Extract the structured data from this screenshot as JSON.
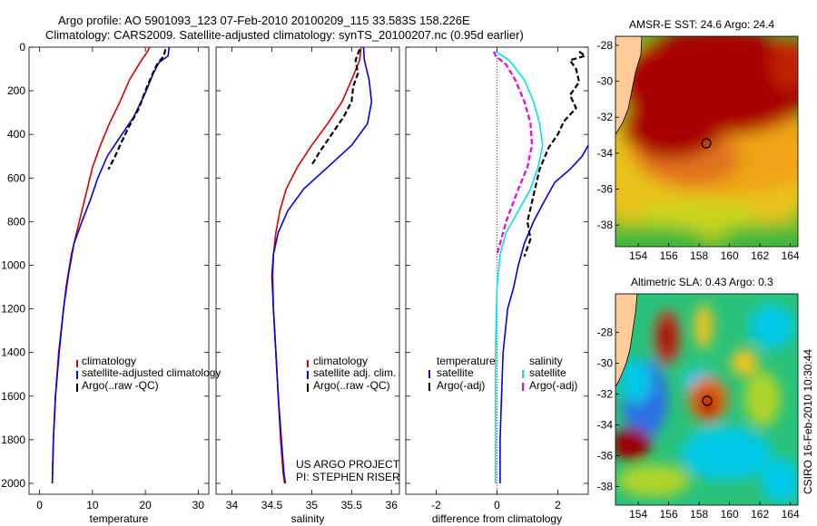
{
  "header": {
    "title_line1": "Argo profile: AO 5901093_123 07-Feb-2010 20100209_115 33.583S 158.226E",
    "title_line2": "Climatology: CARS2009. Satellite-adjusted climatology: synTS_20100207.nc (0.95d earlier)"
  },
  "side_text": "CSIRO 16-Feb-2010 10:30:44",
  "credit": {
    "line1": "US ARGO PROJECT",
    "line2": "PI: STEPHEN RISER"
  },
  "colors": {
    "climatology": "#dd0000",
    "satellite": "#0000ee",
    "argo": "#000000",
    "sat_sal_diff": "#00e5ee",
    "argo_sal_diff": "#ee00ee"
  },
  "chart_data": [
    {
      "type": "line",
      "panel": "temperature",
      "xlabel": "temperature",
      "ylabel": "",
      "xlim": [
        -2,
        32
      ],
      "ylim": [
        2050,
        0
      ],
      "xticks": [
        "0",
        "10",
        "20",
        "30"
      ],
      "yticks": [
        "0",
        "200",
        "400",
        "600",
        "800",
        "1000",
        "1200",
        "1400",
        "1600",
        "1800",
        "2000"
      ],
      "legend": {
        "placement": "lower-right",
        "entries": [
          "climatology",
          "satellite-adjusted climatology",
          "Argo(..raw -QC)"
        ]
      },
      "series": [
        {
          "name": "climatology",
          "style": "solid",
          "color": "#dd0000",
          "x": [
            20.8,
            20.4,
            19.0,
            17.0,
            15.2,
            13.2,
            11.5,
            10.0,
            9.0,
            8.0,
            7.0,
            6.0,
            5.0,
            4.3,
            3.6,
            3.0,
            2.6,
            2.4
          ],
          "y": [
            0,
            20,
            70,
            150,
            250,
            350,
            450,
            550,
            650,
            750,
            850,
            950,
            1100,
            1250,
            1400,
            1600,
            1800,
            2000
          ]
        },
        {
          "name": "satellite-adjusted climatology",
          "style": "solid",
          "color": "#0000ee",
          "x": [
            24.5,
            24.3,
            22.6,
            21.5,
            19.8,
            17.8,
            15.0,
            12.8,
            11.0,
            9.6,
            8.0,
            6.5,
            5.4,
            4.5,
            3.7,
            3.0,
            2.6,
            2.4
          ],
          "y": [
            0,
            40,
            70,
            120,
            220,
            320,
            420,
            500,
            600,
            700,
            800,
            900,
            1050,
            1200,
            1400,
            1600,
            1800,
            2000
          ]
        },
        {
          "name": "Argo(..raw -QC)",
          "style": "dashed",
          "color": "#000000",
          "x": [
            23.8,
            23.5,
            22.2,
            21.4,
            20.0,
            18.8,
            17.0,
            15.4,
            14.3,
            13.0
          ],
          "y": [
            10,
            40,
            80,
            120,
            200,
            280,
            360,
            440,
            500,
            560
          ]
        }
      ]
    },
    {
      "type": "line",
      "panel": "salinity",
      "xlabel": "salinity",
      "ylabel": "",
      "xlim": [
        33.8,
        36.1
      ],
      "ylim": [
        2050,
        0
      ],
      "xticks": [
        "34",
        "34.5",
        "35",
        "35.5",
        "36"
      ],
      "legend": {
        "placement": "lower-right",
        "entries": [
          "climatology",
          "satellite adj. clim.",
          "Argo(..raw -QC)"
        ]
      },
      "series": [
        {
          "name": "climatology",
          "style": "solid",
          "color": "#dd0000",
          "x": [
            35.62,
            35.6,
            35.5,
            35.38,
            35.2,
            35.0,
            34.82,
            34.68,
            34.6,
            34.55,
            34.52,
            34.51,
            34.52,
            34.55,
            34.58,
            34.61,
            34.64,
            34.66
          ],
          "y": [
            0,
            60,
            150,
            250,
            350,
            450,
            550,
            650,
            750,
            850,
            950,
            1050,
            1200,
            1400,
            1600,
            1800,
            1950,
            2000
          ]
        },
        {
          "name": "satellite adj. clim.",
          "style": "solid",
          "color": "#0000ee",
          "x": [
            35.65,
            35.66,
            35.72,
            35.75,
            35.7,
            35.5,
            35.2,
            34.9,
            34.7,
            34.58,
            34.52,
            34.5,
            34.52,
            34.55,
            34.58,
            34.62,
            34.65,
            34.67
          ],
          "y": [
            0,
            60,
            150,
            250,
            350,
            450,
            550,
            650,
            750,
            850,
            950,
            1050,
            1200,
            1400,
            1600,
            1800,
            1950,
            2000
          ]
        },
        {
          "name": "Argo(..raw -QC)",
          "style": "dashed",
          "color": "#000000",
          "x": [
            35.6,
            35.55,
            35.58,
            35.52,
            35.5,
            35.4,
            35.25,
            35.1,
            35.0
          ],
          "y": [
            10,
            60,
            120,
            180,
            250,
            320,
            400,
            480,
            540
          ]
        }
      ]
    },
    {
      "type": "line",
      "panel": "difference",
      "xlabel": "difference from climatology",
      "ylabel": "",
      "xlim": [
        -3.0,
        3.0
      ],
      "ylim": [
        2050,
        0
      ],
      "xticks": [
        "-2",
        "0",
        "2"
      ],
      "legend": {
        "placement": "lower-center",
        "entries": [
          "temperature",
          "satellite",
          "Argo(-adj)",
          "salinity",
          "satellite",
          "Argo(-adj)"
        ]
      },
      "series": [
        {
          "name": "temperature satellite",
          "style": "solid",
          "color": "#0000ee",
          "x": [
            3.0,
            2.8,
            2.4,
            1.9,
            1.5,
            1.2,
            0.9,
            0.7,
            0.55,
            0.35,
            0.2,
            0.15,
            0.1,
            0.1
          ],
          "y": [
            450,
            500,
            560,
            620,
            720,
            800,
            900,
            1000,
            1100,
            1200,
            1400,
            1600,
            1800,
            2000
          ]
        },
        {
          "name": "temperature Argo(-adj)",
          "style": "dashed",
          "color": "#000000",
          "x": [
            2.7,
            2.9,
            2.4,
            2.6,
            2.7,
            2.4,
            2.6,
            2.2,
            2.0,
            1.7,
            1.4,
            1.2,
            1.0,
            1.1,
            0.9
          ],
          "y": [
            20,
            40,
            60,
            100,
            160,
            220,
            280,
            340,
            400,
            460,
            560,
            680,
            800,
            880,
            960
          ]
        },
        {
          "name": "salinity satellite",
          "style": "solid",
          "color": "#00e5ee",
          "x": [
            -0.05,
            0.4,
            0.9,
            1.2,
            1.4,
            1.5,
            1.35,
            1.1,
            0.7,
            0.3,
            0.1,
            0.0,
            -0.05,
            -0.05
          ],
          "y": [
            20,
            60,
            150,
            250,
            350,
            450,
            550,
            650,
            750,
            850,
            950,
            1100,
            1400,
            2000
          ]
        },
        {
          "name": "salinity Argo(-adj)",
          "style": "dashed",
          "color": "#ee00ee",
          "x": [
            -0.1,
            -0.05,
            0.3,
            0.6,
            0.9,
            1.1,
            1.15,
            1.0,
            0.7,
            0.3,
            0.1,
            0.0
          ],
          "y": [
            20,
            40,
            80,
            150,
            250,
            350,
            450,
            550,
            650,
            800,
            900,
            950
          ]
        }
      ]
    },
    {
      "type": "heatmap",
      "panel": "sst_map",
      "title": "AMSR-E SST: 24.6  Argo: 24.4",
      "xlim": [
        152.5,
        164.5
      ],
      "ylim": [
        -39.2,
        -27.5
      ],
      "xticks": [
        "154",
        "156",
        "158",
        "160",
        "162",
        "164"
      ],
      "yticks": [
        "-28",
        "-30",
        "-32",
        "-34",
        "-36",
        "-38"
      ],
      "marker": {
        "lon": 158.226,
        "lat": -33.583
      }
    },
    {
      "type": "heatmap",
      "panel": "sla_map",
      "title": "Altimetric SLA: 0.43  Argo: 0.3",
      "xlim": [
        152.5,
        164.5
      ],
      "ylim": [
        -39.2,
        -25.5
      ],
      "xticks": [
        "154",
        "156",
        "158",
        "160",
        "162",
        "164"
      ],
      "yticks": [
        "-28",
        "-30",
        "-32",
        "-34",
        "-36",
        "-38"
      ],
      "marker": {
        "lon": 158.226,
        "lat": -33.583
      }
    }
  ]
}
